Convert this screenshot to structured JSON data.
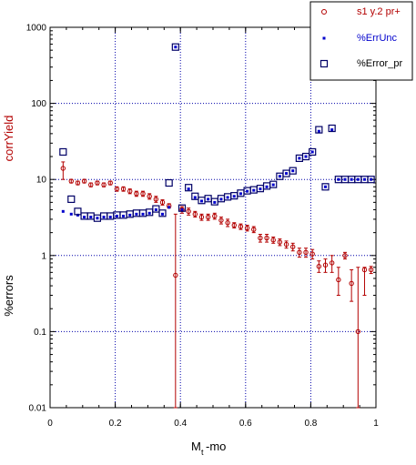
{
  "chart_data": {
    "type": "scatter",
    "xlabel": "M",
    "xlabel_sub": "t",
    "xlabel_suffix": "-mo",
    "ylabel_top": "corrYield",
    "ylabel_bottom": "%errors",
    "xlim": [
      0,
      1.0
    ],
    "ylim": [
      0.01,
      1000
    ],
    "yscale": "log",
    "grid": true,
    "legend_position": "top-right",
    "x_ticks": [
      "0",
      "0.2",
      "0.4",
      "0.6",
      "0.8",
      "1"
    ],
    "x_tick_values": [
      0,
      0.2,
      0.4,
      0.6,
      0.8,
      1.0
    ],
    "y_ticks": [
      "0.01",
      "0.1",
      "1",
      "10",
      "100",
      "1000"
    ],
    "y_tick_values": [
      0.01,
      0.1,
      1,
      10,
      100,
      1000
    ],
    "colors": {
      "red": "#b30000",
      "blue": "#0000cc",
      "navy": "#000066",
      "grid": "#0000aa"
    },
    "series": [
      {
        "name": "s1 y.2 pr+",
        "marker": "circle",
        "color": "#b30000",
        "x": [
          0.04,
          0.065,
          0.085,
          0.105,
          0.125,
          0.145,
          0.165,
          0.185,
          0.205,
          0.225,
          0.245,
          0.265,
          0.285,
          0.305,
          0.325,
          0.345,
          0.365,
          0.385,
          0.405,
          0.425,
          0.445,
          0.465,
          0.485,
          0.505,
          0.525,
          0.545,
          0.565,
          0.585,
          0.605,
          0.625,
          0.645,
          0.665,
          0.685,
          0.705,
          0.725,
          0.745,
          0.765,
          0.785,
          0.805,
          0.825,
          0.845,
          0.865,
          0.885,
          0.905,
          0.925,
          0.945,
          0.965,
          0.985
        ],
        "y": [
          14,
          9.5,
          9,
          9.5,
          8.5,
          9,
          8.5,
          9,
          7.5,
          7.5,
          7,
          6.5,
          6.5,
          6,
          5.5,
          5,
          4.5,
          0.55,
          4,
          3.8,
          3.5,
          3.2,
          3.2,
          3.3,
          2.9,
          2.7,
          2.5,
          2.4,
          2.3,
          2.2,
          1.7,
          1.7,
          1.6,
          1.5,
          1.4,
          1.3,
          1.1,
          1.1,
          1.05,
          0.72,
          0.75,
          0.8,
          0.48,
          1.0,
          0.43,
          0.1,
          0.65,
          0.65
        ],
        "y_err_low": [
          10,
          9.0,
          8.5,
          9.0,
          8.0,
          8.5,
          8.0,
          8.5,
          7.0,
          7.0,
          6.5,
          6.0,
          6.0,
          5.5,
          5.0,
          4.6,
          4.2,
          0.01,
          3.6,
          3.4,
          3.2,
          2.9,
          2.9,
          3.0,
          2.6,
          2.4,
          2.3,
          2.2,
          2.1,
          2.0,
          1.5,
          1.5,
          1.45,
          1.35,
          1.25,
          1.15,
          0.95,
          0.95,
          0.9,
          0.6,
          0.6,
          0.6,
          0.3,
          0.9,
          0.25,
          0.01,
          0.3,
          0.58
        ],
        "y_err_high": [
          17,
          10.0,
          9.5,
          10.0,
          9.0,
          9.5,
          9.0,
          9.5,
          8.0,
          8.0,
          7.5,
          7.0,
          7.0,
          6.5,
          6.0,
          5.4,
          4.8,
          3.5,
          4.4,
          4.2,
          3.8,
          3.5,
          3.5,
          3.6,
          3.2,
          3.0,
          2.7,
          2.6,
          2.5,
          2.4,
          1.9,
          1.9,
          1.75,
          1.65,
          1.55,
          1.45,
          1.25,
          1.25,
          1.2,
          0.85,
          0.9,
          1.0,
          0.7,
          1.1,
          0.65,
          0.7,
          0.7,
          0.72
        ]
      },
      {
        "name": "%ErrUnc",
        "marker": "dot",
        "color": "#0000cc",
        "x": [
          0.04,
          0.065,
          0.085,
          0.105,
          0.125,
          0.145,
          0.165,
          0.185,
          0.205,
          0.225,
          0.245,
          0.265,
          0.285,
          0.305,
          0.325,
          0.345,
          0.365,
          0.385,
          0.405,
          0.425,
          0.445,
          0.465,
          0.485,
          0.505,
          0.525,
          0.545,
          0.565,
          0.585,
          0.605,
          0.625,
          0.645,
          0.665,
          0.685,
          0.705,
          0.725,
          0.745,
          0.765,
          0.785,
          0.805,
          0.825,
          0.845,
          0.865,
          0.885,
          0.905,
          0.925,
          0.945,
          0.965,
          0.985
        ],
        "y": [
          3.8,
          3.5,
          3.4,
          3.2,
          3.2,
          3.1,
          3.2,
          3.2,
          3.3,
          3.3,
          3.4,
          3.5,
          3.5,
          3.6,
          4.0,
          3.5,
          4.3,
          550,
          4.0,
          7.5,
          5.8,
          5.2,
          5.5,
          5.0,
          5.5,
          5.8,
          6.0,
          6.5,
          7.0,
          7.2,
          7.5,
          8.0,
          8.5,
          11,
          12,
          13,
          19,
          20,
          23,
          43,
          8.0,
          45,
          10,
          10,
          10,
          10,
          10,
          10
        ]
      },
      {
        "name": "%Error_pr",
        "marker": "square",
        "color": "#000066",
        "x": [
          0.04,
          0.065,
          0.085,
          0.105,
          0.125,
          0.145,
          0.165,
          0.185,
          0.205,
          0.225,
          0.245,
          0.265,
          0.285,
          0.305,
          0.325,
          0.345,
          0.365,
          0.385,
          0.405,
          0.425,
          0.445,
          0.465,
          0.485,
          0.505,
          0.525,
          0.545,
          0.565,
          0.585,
          0.605,
          0.625,
          0.645,
          0.665,
          0.685,
          0.705,
          0.725,
          0.745,
          0.765,
          0.785,
          0.805,
          0.825,
          0.845,
          0.865,
          0.885,
          0.905,
          0.925,
          0.945,
          0.965,
          0.985
        ],
        "y": [
          23,
          5.5,
          3.8,
          3.3,
          3.3,
          3.1,
          3.3,
          3.3,
          3.4,
          3.4,
          3.5,
          3.6,
          3.6,
          3.7,
          4.1,
          3.6,
          9.0,
          550,
          4.2,
          7.8,
          6.0,
          5.3,
          5.6,
          5.1,
          5.6,
          5.9,
          6.1,
          6.6,
          7.1,
          7.3,
          7.6,
          8.2,
          8.6,
          11,
          12,
          13,
          19,
          20,
          23,
          45,
          8.0,
          47,
          10,
          10,
          10,
          10,
          10,
          10
        ]
      }
    ]
  }
}
